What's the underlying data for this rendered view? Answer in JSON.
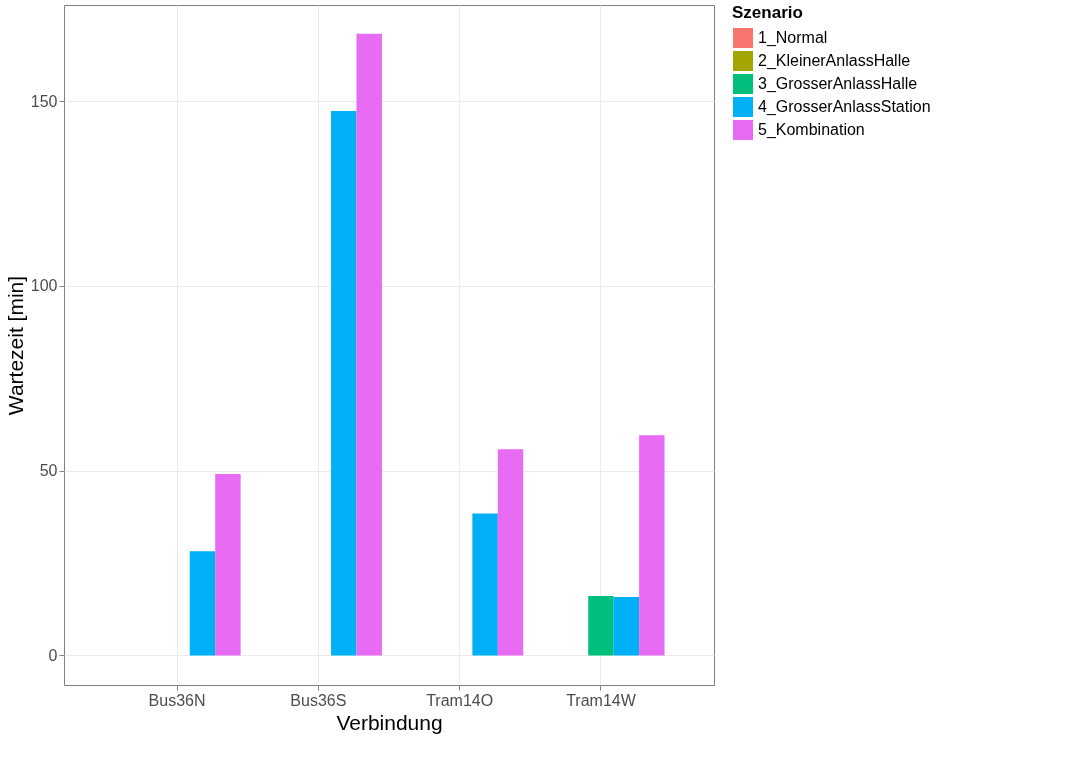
{
  "chart_data": {
    "type": "bar",
    "xlabel": "Verbindung",
    "ylabel": "Wartezeit [min]",
    "legend_title": "Szenario",
    "categories": [
      "Bus36N",
      "Bus36S",
      "Tram14O",
      "Tram14W"
    ],
    "series": [
      {
        "name": "1_Normal",
        "color": "#f8766d",
        "values": [
          0,
          0,
          0,
          0
        ]
      },
      {
        "name": "2_KleinerAnlassHalle",
        "color": "#a3a500",
        "values": [
          0,
          0,
          0,
          0
        ]
      },
      {
        "name": "3_GrosserAnlassHalle",
        "color": "#00bf7d",
        "values": [
          0,
          0,
          0,
          16.1
        ]
      },
      {
        "name": "4_GrosserAnlassStation",
        "color": "#00b0f6",
        "values": [
          28.2,
          147.3,
          38.4,
          15.8
        ]
      },
      {
        "name": "5_Kombination",
        "color": "#e76bf3",
        "values": [
          49.1,
          168.2,
          55.8,
          59.6
        ]
      }
    ],
    "ylim": [
      -8,
      176
    ],
    "yticks": [
      0,
      50,
      100,
      150
    ],
    "grid": true,
    "legend": "right"
  }
}
